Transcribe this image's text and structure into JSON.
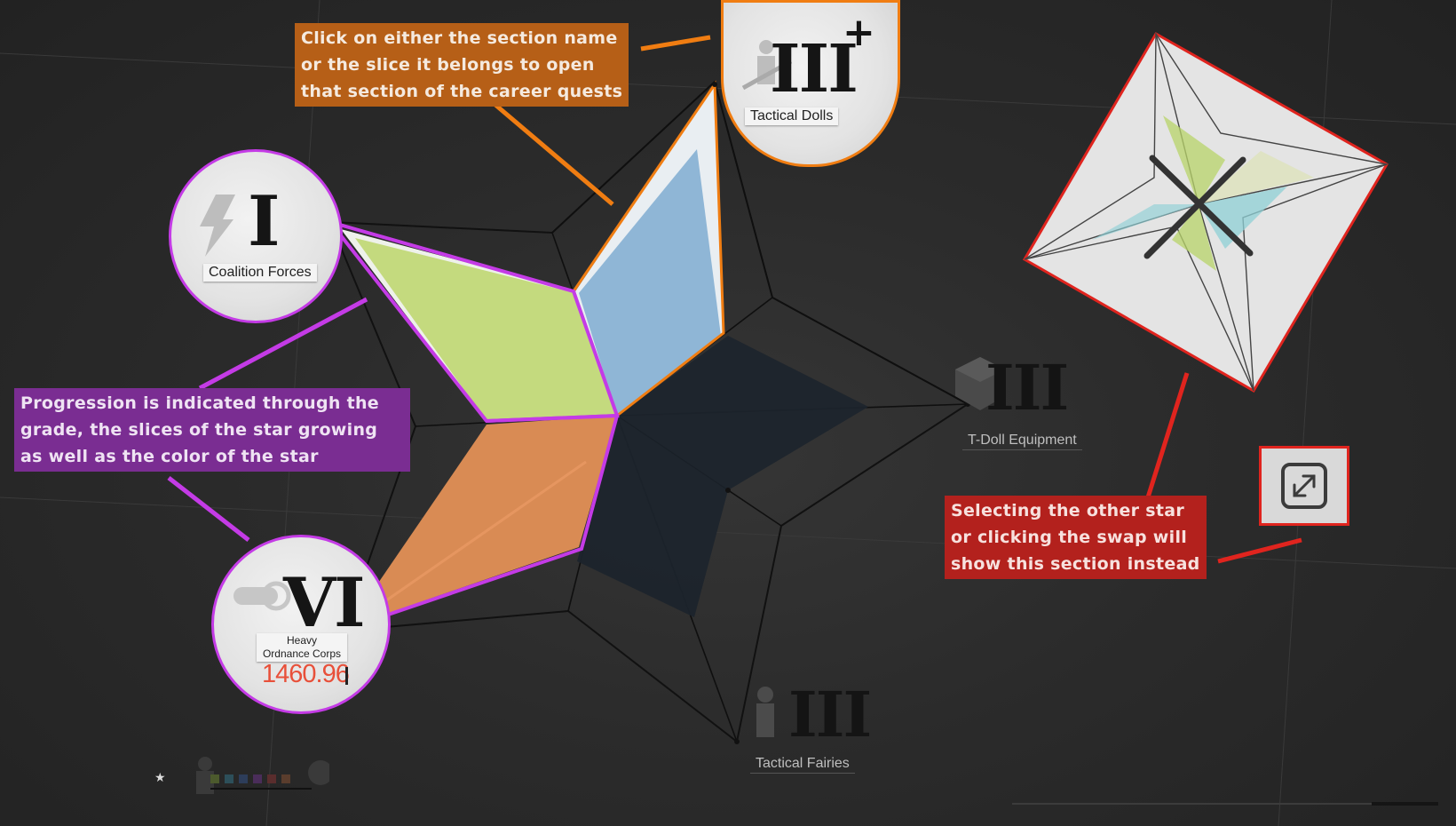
{
  "sections": {
    "coalition_forces": {
      "grade": "I",
      "label": "Coalition Forces"
    },
    "tactical_dolls": {
      "grade": "III",
      "grade_suffix": "+",
      "label": "Tactical Dolls"
    },
    "tdoll_equipment": {
      "grade": "III",
      "label": "T-Doll Equipment"
    },
    "tactical_fairies": {
      "grade": "III",
      "label": "Tactical Fairies"
    },
    "heavy_ordnance_corps": {
      "grade": "VI",
      "label": "Heavy Ordnance Corps",
      "score": "1460.96"
    }
  },
  "annotations": {
    "orange": "Click on either the section name\nor the slice it belongs to open\nthat section of the career quests",
    "purple": "Progression is indicated through the\ngrade, the slices of the star growing\nas well as the color of the star",
    "red": "Selecting the other star\nor clicking the swap will\nshow this section instead"
  },
  "legend": {
    "star_symbol": "★"
  },
  "icons": {
    "swap": "expand-arrows-icon",
    "coalition": "lightning-icon",
    "dolls": "soldier-rifle-icon",
    "equipment": "cube-icon",
    "fairies": "fairy-icon",
    "ordnance": "artillery-icon",
    "mini_star_center": "crossed-rifles-icon"
  },
  "colors": {
    "slice_green": "#c4da7e",
    "slice_blue": "#8fb6d6",
    "slice_orange": "#d98b54",
    "highlight_purple": "#c43be6",
    "highlight_orange": "#f07d12",
    "highlight_red": "#e0241e"
  }
}
